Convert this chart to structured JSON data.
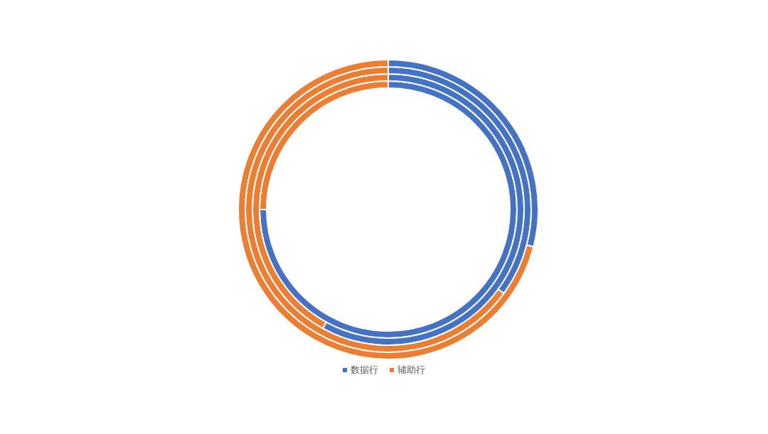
{
  "chart_data": {
    "type": "donut",
    "categories": [
      "数据行",
      "辅助行"
    ],
    "colors": [
      "#4472c4",
      "#ed7d31"
    ],
    "series": [
      {
        "values": [
          75,
          25
        ]
      },
      {
        "values": [
          58,
          42
        ]
      },
      {
        "values": [
          35,
          65
        ]
      },
      {
        "values": [
          29,
          71
        ]
      }
    ],
    "legend": "bottom"
  }
}
